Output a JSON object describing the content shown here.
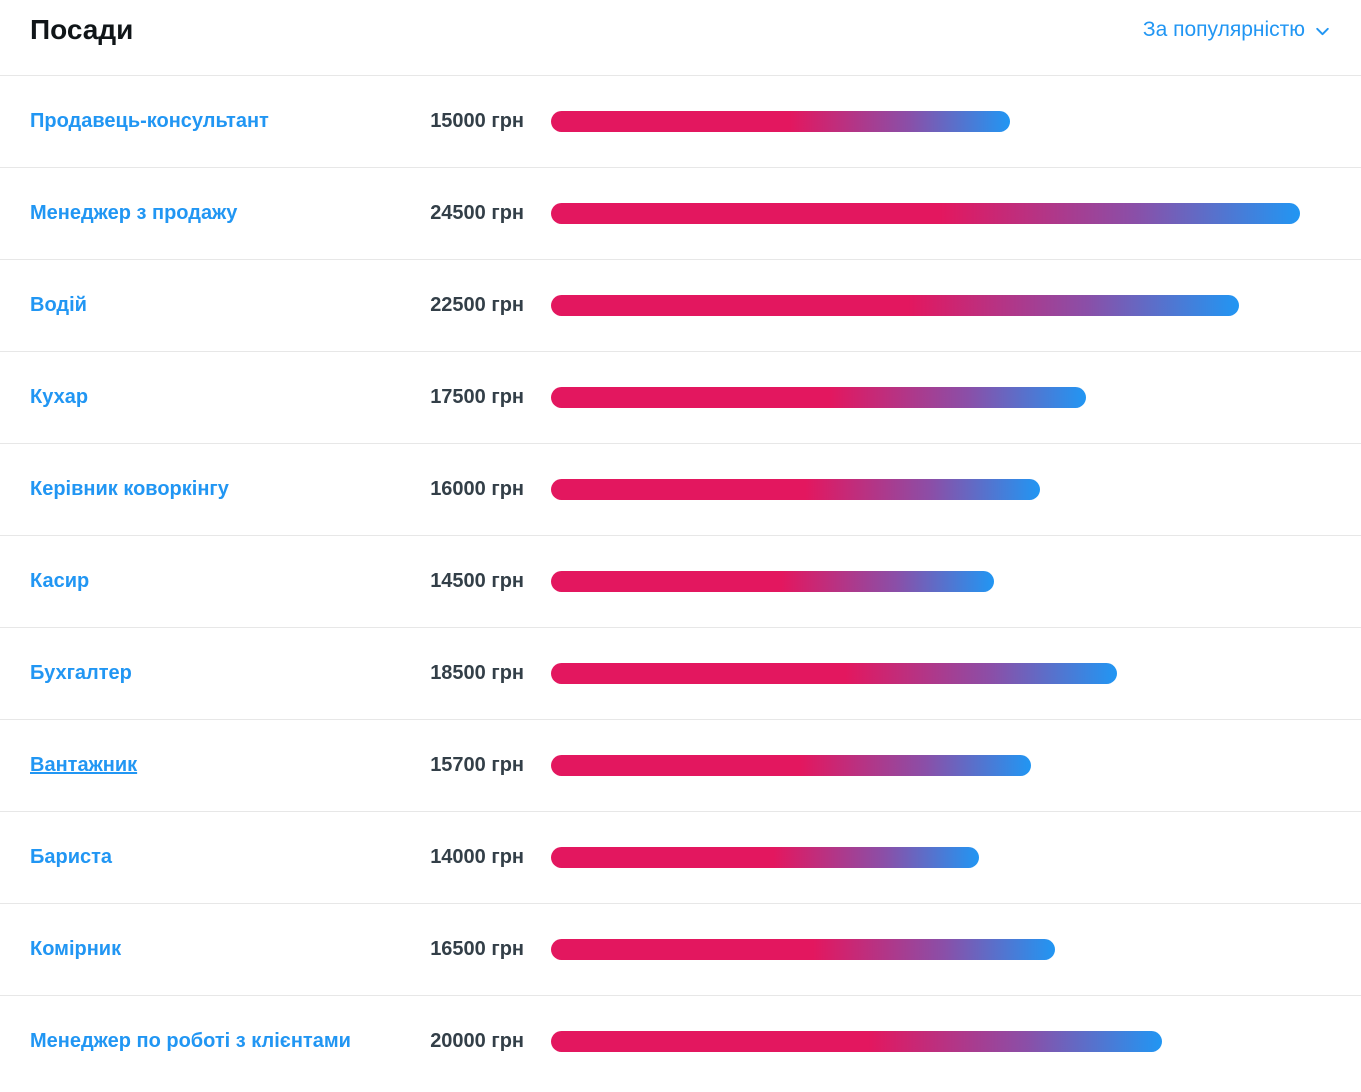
{
  "header": {
    "title": "Посади",
    "sort": {
      "label": "За популярністю",
      "icon": "chevron-down-icon"
    }
  },
  "colors": {
    "link_blue": "#2196f3",
    "salary_text": "#333f48",
    "bar_gradient_start": "#e3175f",
    "bar_gradient_end": "#2196f3",
    "divider": "#e7e7e7",
    "background": "#ffffff"
  },
  "rows": [
    {
      "label": "Продавець-консультант",
      "salary": "15000 грн",
      "value": 15000,
      "underlined": false
    },
    {
      "label": "Менеджер з продажу",
      "salary": "24500 грн",
      "value": 24500,
      "underlined": false
    },
    {
      "label": "Водій",
      "salary": "22500 грн",
      "value": 22500,
      "underlined": false
    },
    {
      "label": "Кухар",
      "salary": "17500 грн",
      "value": 17500,
      "underlined": false
    },
    {
      "label": "Керівник коворкінгу",
      "salary": "16000 грн",
      "value": 16000,
      "underlined": false
    },
    {
      "label": "Касир",
      "salary": "14500 грн",
      "value": 14500,
      "underlined": false
    },
    {
      "label": "Бухгалтер",
      "salary": "18500 грн",
      "value": 18500,
      "underlined": false
    },
    {
      "label": "Вантажник",
      "salary": "15700 грн",
      "value": 15700,
      "underlined": true
    },
    {
      "label": "Бариста",
      "salary": "14000 грн",
      "value": 14000,
      "underlined": false
    },
    {
      "label": "Комірник",
      "salary": "16500 грн",
      "value": 16500,
      "underlined": false
    },
    {
      "label": "Менеджер по роботі з клієнтами",
      "salary": "20000 грн",
      "value": 20000,
      "underlined": false
    }
  ],
  "chart_data": {
    "type": "bar",
    "orientation": "horizontal",
    "title": "Посади",
    "sort_order": "За популярністю",
    "categories": [
      "Продавець-консультант",
      "Менеджер з продажу",
      "Водій",
      "Кухар",
      "Керівник коворкінгу",
      "Касир",
      "Бухгалтер",
      "Вантажник",
      "Бариста",
      "Комірник",
      "Менеджер по роботі з клієнтами"
    ],
    "values": [
      15000,
      24500,
      22500,
      17500,
      16000,
      14500,
      18500,
      15700,
      14000,
      16500,
      20000
    ],
    "value_labels": [
      "15000 грн",
      "24500 грн",
      "22500 грн",
      "17500 грн",
      "16000 грн",
      "14500 грн",
      "18500 грн",
      "15700 грн",
      "14000 грн",
      "16500 грн",
      "20000 грн"
    ],
    "unit": "грн",
    "xlim": [
      0,
      24500
    ],
    "grid": false,
    "legend": false,
    "bar_color_gradient": [
      "#e3175f",
      "#2196f3"
    ]
  }
}
